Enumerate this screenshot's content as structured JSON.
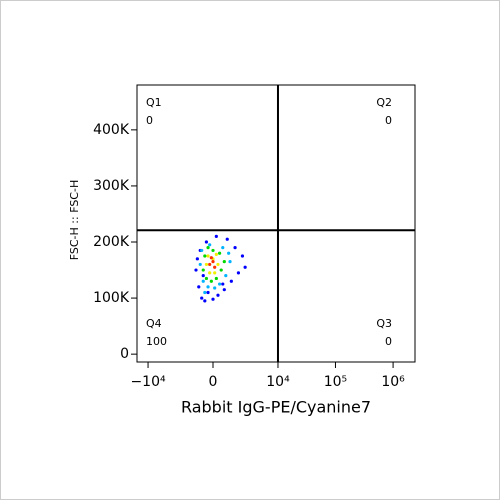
{
  "chart_data": {
    "type": "scatter",
    "x_label": "Rabbit IgG-PE/Cyanine7",
    "y_label": "FSC-H :: FSC-H",
    "x_scale": "biexponential",
    "xlim": [
      -15600,
      2400000
    ],
    "ylim": [
      -14000,
      480000
    ],
    "xticks": [
      {
        "value": -10000,
        "label": "−10⁴"
      },
      0,
      {
        "value": 10000,
        "label": "10⁴"
      },
      {
        "value": 100000,
        "label": "10⁵"
      },
      {
        "value": 1000000,
        "label": "10⁶"
      }
    ],
    "yticks": [
      0,
      {
        "value": 100000,
        "label": "100K"
      },
      {
        "value": 200000,
        "label": "200K"
      },
      {
        "value": 300000,
        "label": "300K"
      },
      {
        "value": 400000,
        "label": "400K"
      }
    ],
    "quadrant_gate": {
      "x": 10000,
      "y": 221000
    },
    "quadrants": [
      {
        "name": "Q1",
        "value": 0,
        "corner": "top-left"
      },
      {
        "name": "Q2",
        "value": 0,
        "corner": "top-right"
      },
      {
        "name": "Q3",
        "value": 0,
        "corner": "bottom-right"
      },
      {
        "name": "Q4",
        "value": 100,
        "corner": "bottom-left"
      }
    ],
    "series": [
      {
        "color": "#0000ff",
        "x": [
          -1100,
          -900,
          -700,
          -500,
          -300,
          0,
          300,
          700,
          1200,
          1800,
          2500,
          -800,
          -400,
          200,
          900,
          1500,
          -1000,
          600,
          2200,
          -600
        ],
        "y": [
          150000,
          120000,
          100000,
          95000,
          110000,
          98000,
          105000,
          115000,
          130000,
          145000,
          155000,
          185000,
          200000,
          210000,
          205000,
          190000,
          170000,
          125000,
          175000,
          140000
        ]
      },
      {
        "color": "#00b4ff",
        "x": [
          -800,
          -600,
          -300,
          100,
          400,
          800,
          1100,
          -700,
          -200,
          600,
          1000,
          -500
        ],
        "y": [
          160000,
          130000,
          120000,
          118000,
          125000,
          140000,
          165000,
          185000,
          195000,
          190000,
          180000,
          110000
        ]
      },
      {
        "color": "#00d800",
        "x": [
          -600,
          -400,
          -100,
          200,
          500,
          700,
          -500,
          0,
          400,
          -300
        ],
        "y": [
          150000,
          135000,
          130000,
          135000,
          150000,
          165000,
          175000,
          185000,
          180000,
          190000
        ]
      },
      {
        "color": "#f0f000",
        "x": [
          -400,
          -200,
          100,
          300,
          -300,
          0,
          200
        ],
        "y": [
          160000,
          145000,
          145000,
          160000,
          175000,
          170000,
          178000
        ]
      },
      {
        "color": "#ff3000",
        "x": [
          -200,
          0,
          100,
          -100
        ],
        "y": [
          160000,
          165000,
          155000,
          172000
        ]
      }
    ]
  }
}
